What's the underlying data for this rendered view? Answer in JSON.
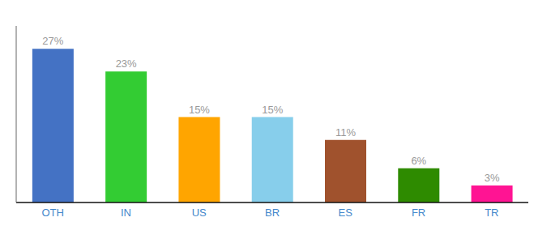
{
  "chart_data": {
    "type": "bar",
    "categories": [
      "OTH",
      "IN",
      "US",
      "BR",
      "ES",
      "FR",
      "TR"
    ],
    "values": [
      27,
      23,
      15,
      15,
      11,
      6,
      3
    ],
    "value_labels": [
      "27%",
      "23%",
      "15%",
      "15%",
      "11%",
      "6%",
      "3%"
    ],
    "colors": [
      "#4472C4",
      "#33CC33",
      "#FFA500",
      "#87CEEB",
      "#A0522D",
      "#2E8B00",
      "#FF1493"
    ],
    "ylim": [
      0,
      31
    ],
    "data_labels": true,
    "tick_labels": "x",
    "grid": false
  }
}
